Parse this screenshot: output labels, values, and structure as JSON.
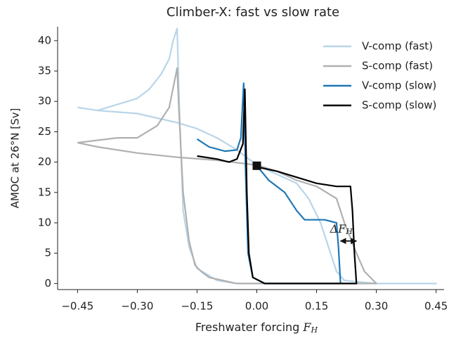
{
  "chart_data": {
    "type": "line",
    "title": "Climber-X: fast vs slow rate",
    "xlabel": "Freshwater forcing",
    "xlabel_symbol": "F",
    "xlabel_sub": "H",
    "ylabel": "AMOC at 26°N [Sv]",
    "xlim": [
      -0.5,
      0.47
    ],
    "ylim": [
      -1,
      42.3
    ],
    "xticks": [
      {
        "value": -0.45,
        "label": "−0.45"
      },
      {
        "value": -0.3,
        "label": "−0.30"
      },
      {
        "value": -0.15,
        "label": "−0.15"
      },
      {
        "value": 0,
        "label": "0.00"
      },
      0.15,
      {
        "value": 0.3,
        "label": "0.30"
      },
      0.45
    ],
    "yticks": [
      0,
      5,
      10,
      15,
      20,
      25,
      30,
      35,
      40
    ],
    "grid": false,
    "legend": "upper right",
    "series": [
      {
        "name": "V-comp (fast)",
        "color": "#b9d5e9",
        "x": [
          -0.45,
          -0.4,
          -0.35,
          -0.3,
          -0.27,
          -0.24,
          -0.22,
          -0.21,
          -0.2,
          -0.195,
          -0.185,
          -0.17,
          -0.15,
          -0.1,
          -0.05,
          0.1,
          0.3,
          0.45,
          0.3,
          0.22,
          0.2,
          0.18,
          0.16,
          0.13,
          0.1,
          0.05,
          0,
          -0.05,
          -0.1,
          -0.15,
          -0.2,
          -0.3,
          -0.4,
          -0.45
        ],
        "values": [
          29,
          28.5,
          29.5,
          30.5,
          32,
          34.5,
          37,
          40,
          42,
          30,
          12,
          6,
          2.5,
          0.5,
          0,
          0,
          0,
          0,
          0,
          0.5,
          2,
          6,
          10,
          14,
          16.5,
          18,
          19.5,
          22,
          24,
          25.5,
          26.5,
          28,
          28.5,
          29
        ]
      },
      {
        "name": "S-comp (fast)",
        "color": "#b0b0b0",
        "x": [
          -0.45,
          -0.35,
          -0.3,
          -0.25,
          -0.22,
          -0.2,
          -0.195,
          -0.185,
          -0.17,
          -0.155,
          -0.14,
          -0.12,
          -0.05,
          0.3,
          0.27,
          0.25,
          0.22,
          0.2,
          0.15,
          0.1,
          0.05,
          0,
          -0.1,
          -0.2,
          -0.3,
          -0.4,
          -0.45
        ],
        "values": [
          23.2,
          24,
          24,
          26,
          29,
          35.5,
          28,
          15,
          7,
          3,
          2,
          1,
          0,
          0,
          2,
          5,
          10,
          14,
          16,
          17,
          18.5,
          19.5,
          20.3,
          20.8,
          21.5,
          22.5,
          23.2
        ]
      },
      {
        "name": "V-comp (slow)",
        "color": "#1f77b4",
        "x": [
          -0.15,
          -0.12,
          -0.08,
          -0.05,
          -0.04,
          -0.033,
          -0.028,
          -0.022,
          -0.01,
          0.02,
          0.21,
          0.205,
          0.2,
          0.17,
          0.12,
          0.1,
          0.07,
          0.03,
          0
        ],
        "values": [
          23.8,
          22.5,
          21.8,
          22,
          24,
          33,
          18,
          5,
          1,
          0,
          0,
          6,
          10,
          10.5,
          10.5,
          12,
          15,
          17,
          19.4
        ]
      },
      {
        "name": "S-comp (slow)",
        "color": "#000000",
        "x": [
          -0.15,
          -0.1,
          -0.07,
          -0.05,
          -0.035,
          -0.03,
          -0.025,
          -0.02,
          -0.01,
          0.02,
          0.25,
          0.245,
          0.24,
          0.235,
          0.2,
          0.15,
          0.1,
          0.05,
          0
        ],
        "values": [
          21,
          20.5,
          20,
          20.5,
          23,
          32,
          15,
          5,
          1,
          0,
          0,
          5,
          12,
          16,
          16,
          16.5,
          17.5,
          18.5,
          19.2
        ]
      }
    ],
    "marker": {
      "x": 0,
      "y": 19.4
    },
    "annotation": {
      "text": "ΔF",
      "sub": "H",
      "x": [
        0.21,
        0.25
      ],
      "y": 7
    }
  }
}
